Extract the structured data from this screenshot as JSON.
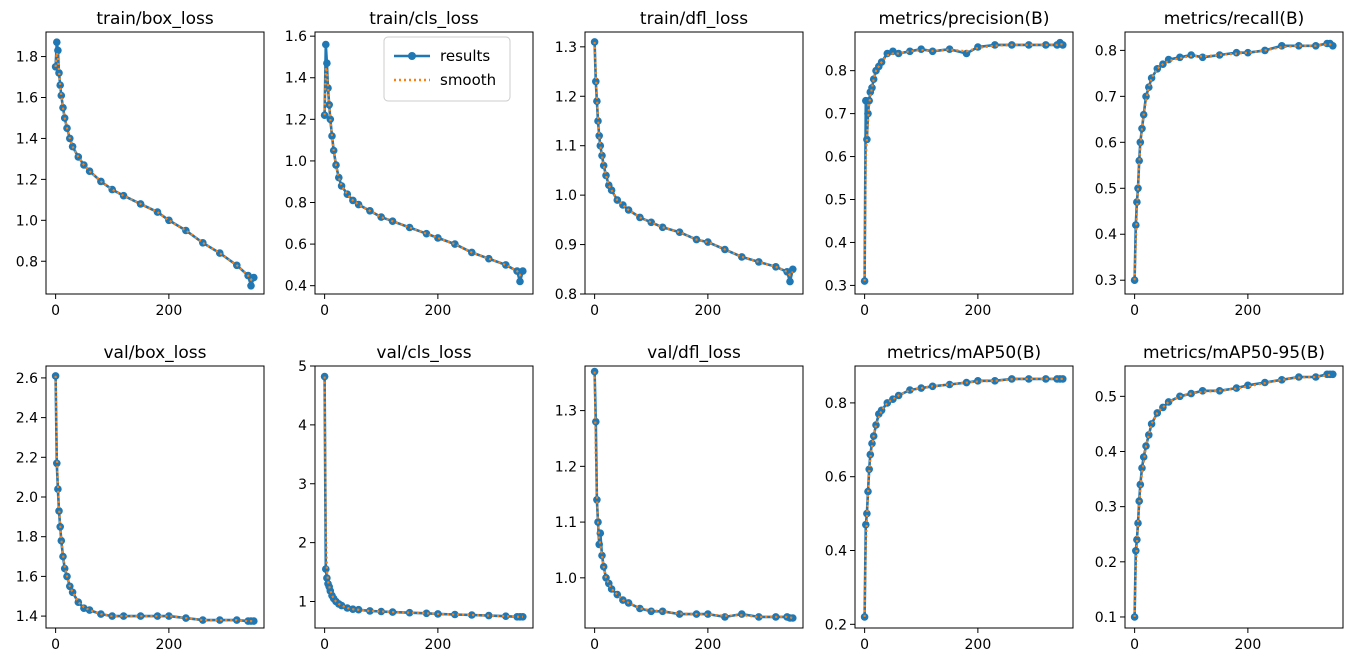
{
  "figure": {
    "background": "#ffffff"
  },
  "legend": {
    "panel": 1,
    "placement": "upper-right",
    "entries": [
      {
        "label": "results",
        "style": "line-marker",
        "color": "#1f77b4"
      },
      {
        "label": "smooth",
        "style": "dotted",
        "color": "#ff7f0e"
      }
    ]
  },
  "chart_data": [
    {
      "type": "line",
      "title": "train/box_loss",
      "x": [
        0,
        2,
        4,
        6,
        8,
        10,
        13,
        16,
        20,
        25,
        30,
        40,
        50,
        60,
        80,
        100,
        120,
        150,
        180,
        200,
        230,
        260,
        290,
        320,
        340,
        345,
        350
      ],
      "series": [
        {
          "name": "results",
          "values": [
            1.75,
            1.87,
            1.83,
            1.72,
            1.66,
            1.61,
            1.55,
            1.5,
            1.45,
            1.4,
            1.36,
            1.31,
            1.27,
            1.24,
            1.19,
            1.15,
            1.12,
            1.08,
            1.04,
            1.0,
            0.95,
            0.89,
            0.84,
            0.78,
            0.73,
            0.68,
            0.72
          ]
        },
        {
          "name": "smooth",
          "values": [
            1.75,
            1.82,
            1.8,
            1.73,
            1.66,
            1.61,
            1.55,
            1.5,
            1.45,
            1.4,
            1.36,
            1.31,
            1.27,
            1.24,
            1.19,
            1.15,
            1.12,
            1.08,
            1.04,
            1.0,
            0.95,
            0.89,
            0.84,
            0.78,
            0.73,
            0.71,
            0.72
          ]
        }
      ],
      "xlim": [
        -17,
        368
      ],
      "ylim": [
        0.64,
        1.92
      ],
      "xticks": [
        0,
        200
      ],
      "yticks": [
        0.8,
        1.0,
        1.2,
        1.4,
        1.6,
        1.8
      ],
      "yticklabels": [
        "0.8",
        "1.0",
        "1.2",
        "1.4",
        "1.6",
        "1.8"
      ]
    },
    {
      "type": "line",
      "title": "train/cls_loss",
      "x": [
        0,
        2,
        4,
        6,
        8,
        10,
        13,
        16,
        20,
        25,
        30,
        40,
        50,
        60,
        80,
        100,
        120,
        150,
        180,
        200,
        230,
        260,
        290,
        320,
        340,
        345,
        350
      ],
      "series": [
        {
          "name": "results",
          "values": [
            1.22,
            1.56,
            1.47,
            1.35,
            1.27,
            1.2,
            1.12,
            1.05,
            0.98,
            0.92,
            0.88,
            0.84,
            0.81,
            0.79,
            0.76,
            0.73,
            0.71,
            0.68,
            0.65,
            0.63,
            0.6,
            0.56,
            0.53,
            0.5,
            0.47,
            0.42,
            0.47
          ]
        },
        {
          "name": "smooth",
          "values": [
            1.22,
            1.45,
            1.43,
            1.36,
            1.28,
            1.2,
            1.12,
            1.05,
            0.98,
            0.92,
            0.88,
            0.84,
            0.81,
            0.79,
            0.76,
            0.73,
            0.71,
            0.68,
            0.65,
            0.63,
            0.6,
            0.56,
            0.53,
            0.5,
            0.47,
            0.45,
            0.46
          ]
        }
      ],
      "xlim": [
        -17,
        368
      ],
      "ylim": [
        0.36,
        1.62
      ],
      "xticks": [
        0,
        200
      ],
      "yticks": [
        0.4,
        0.6,
        0.8,
        1.0,
        1.2,
        1.4,
        1.6
      ],
      "yticklabels": [
        "0.4",
        "0.6",
        "0.8",
        "1.0",
        "1.2",
        "1.4",
        "1.6"
      ]
    },
    {
      "type": "line",
      "title": "train/dfl_loss",
      "x": [
        0,
        2,
        4,
        6,
        8,
        10,
        13,
        16,
        20,
        25,
        30,
        40,
        50,
        60,
        80,
        100,
        120,
        150,
        180,
        200,
        230,
        260,
        290,
        320,
        340,
        345,
        350
      ],
      "series": [
        {
          "name": "results",
          "values": [
            1.31,
            1.23,
            1.19,
            1.15,
            1.12,
            1.1,
            1.08,
            1.06,
            1.04,
            1.02,
            1.01,
            0.99,
            0.98,
            0.97,
            0.955,
            0.945,
            0.935,
            0.925,
            0.91,
            0.905,
            0.89,
            0.875,
            0.865,
            0.855,
            0.845,
            0.825,
            0.85
          ]
        },
        {
          "name": "smooth",
          "values": [
            1.31,
            1.25,
            1.2,
            1.16,
            1.12,
            1.1,
            1.08,
            1.06,
            1.04,
            1.02,
            1.01,
            0.99,
            0.98,
            0.97,
            0.955,
            0.945,
            0.935,
            0.925,
            0.91,
            0.905,
            0.89,
            0.875,
            0.865,
            0.855,
            0.845,
            0.838,
            0.845
          ]
        }
      ],
      "xlim": [
        -17,
        368
      ],
      "ylim": [
        0.8,
        1.33
      ],
      "xticks": [
        0,
        200
      ],
      "yticks": [
        0.8,
        0.9,
        1.0,
        1.1,
        1.2,
        1.3
      ],
      "yticklabels": [
        "0.8",
        "0.9",
        "1.0",
        "1.1",
        "1.2",
        "1.3"
      ]
    },
    {
      "type": "line",
      "title": "metrics/precision(B)",
      "x": [
        0,
        2,
        4,
        6,
        8,
        10,
        13,
        16,
        20,
        25,
        30,
        40,
        50,
        60,
        80,
        100,
        120,
        150,
        180,
        200,
        230,
        260,
        290,
        320,
        340,
        345,
        350
      ],
      "series": [
        {
          "name": "results",
          "values": [
            0.31,
            0.73,
            0.64,
            0.7,
            0.73,
            0.75,
            0.76,
            0.78,
            0.8,
            0.81,
            0.82,
            0.84,
            0.845,
            0.84,
            0.845,
            0.85,
            0.845,
            0.85,
            0.84,
            0.855,
            0.86,
            0.86,
            0.86,
            0.86,
            0.86,
            0.865,
            0.86
          ]
        },
        {
          "name": "smooth",
          "values": [
            0.31,
            0.6,
            0.64,
            0.68,
            0.72,
            0.74,
            0.76,
            0.78,
            0.8,
            0.81,
            0.82,
            0.835,
            0.84,
            0.84,
            0.845,
            0.848,
            0.846,
            0.849,
            0.845,
            0.853,
            0.858,
            0.86,
            0.86,
            0.86,
            0.86,
            0.862,
            0.861
          ]
        }
      ],
      "xlim": [
        -17,
        368
      ],
      "ylim": [
        0.28,
        0.89
      ],
      "xticks": [
        0,
        200
      ],
      "yticks": [
        0.3,
        0.4,
        0.5,
        0.6,
        0.7,
        0.8
      ],
      "yticklabels": [
        "0.3",
        "0.4",
        "0.5",
        "0.6",
        "0.7",
        "0.8"
      ]
    },
    {
      "type": "line",
      "title": "metrics/recall(B)",
      "x": [
        0,
        2,
        4,
        6,
        8,
        10,
        13,
        16,
        20,
        25,
        30,
        40,
        50,
        60,
        80,
        100,
        120,
        150,
        180,
        200,
        230,
        260,
        290,
        320,
        340,
        345,
        350
      ],
      "series": [
        {
          "name": "results",
          "values": [
            0.3,
            0.42,
            0.47,
            0.5,
            0.56,
            0.6,
            0.63,
            0.66,
            0.7,
            0.72,
            0.74,
            0.76,
            0.77,
            0.78,
            0.785,
            0.79,
            0.785,
            0.79,
            0.795,
            0.795,
            0.8,
            0.81,
            0.81,
            0.81,
            0.815,
            0.815,
            0.81
          ]
        },
        {
          "name": "smooth",
          "values": [
            0.3,
            0.38,
            0.45,
            0.5,
            0.55,
            0.59,
            0.63,
            0.66,
            0.69,
            0.72,
            0.74,
            0.76,
            0.77,
            0.777,
            0.783,
            0.788,
            0.787,
            0.79,
            0.793,
            0.795,
            0.8,
            0.807,
            0.81,
            0.81,
            0.813,
            0.813,
            0.812
          ]
        }
      ],
      "xlim": [
        -17,
        368
      ],
      "ylim": [
        0.27,
        0.84
      ],
      "xticks": [
        0,
        200
      ],
      "yticks": [
        0.3,
        0.4,
        0.5,
        0.6,
        0.7,
        0.8
      ],
      "yticklabels": [
        "0.3",
        "0.4",
        "0.5",
        "0.6",
        "0.7",
        "0.8"
      ]
    },
    {
      "type": "line",
      "title": "val/box_loss",
      "x": [
        0,
        2,
        4,
        6,
        8,
        10,
        13,
        16,
        20,
        25,
        30,
        40,
        50,
        60,
        80,
        100,
        120,
        150,
        180,
        200,
        230,
        260,
        290,
        320,
        340,
        345,
        350
      ],
      "series": [
        {
          "name": "results",
          "values": [
            2.61,
            2.17,
            2.04,
            1.93,
            1.85,
            1.78,
            1.7,
            1.64,
            1.6,
            1.55,
            1.52,
            1.47,
            1.44,
            1.43,
            1.41,
            1.4,
            1.4,
            1.4,
            1.4,
            1.4,
            1.39,
            1.38,
            1.38,
            1.38,
            1.375,
            1.375,
            1.375
          ]
        },
        {
          "name": "smooth",
          "values": [
            2.61,
            2.23,
            2.06,
            1.95,
            1.86,
            1.79,
            1.71,
            1.65,
            1.6,
            1.55,
            1.52,
            1.47,
            1.445,
            1.43,
            1.41,
            1.4,
            1.4,
            1.4,
            1.4,
            1.4,
            1.39,
            1.38,
            1.38,
            1.38,
            1.375,
            1.375,
            1.375
          ]
        }
      ],
      "xlim": [
        -17,
        368
      ],
      "ylim": [
        1.34,
        2.66
      ],
      "xticks": [
        0,
        200
      ],
      "yticks": [
        1.4,
        1.6,
        1.8,
        2.0,
        2.2,
        2.4,
        2.6
      ],
      "yticklabels": [
        "1.4",
        "1.6",
        "1.8",
        "2.0",
        "2.2",
        "2.4",
        "2.6"
      ]
    },
    {
      "type": "line",
      "title": "val/cls_loss",
      "x": [
        0,
        2,
        4,
        6,
        8,
        10,
        13,
        16,
        20,
        25,
        30,
        40,
        50,
        60,
        80,
        100,
        120,
        150,
        180,
        200,
        230,
        260,
        290,
        320,
        340,
        345,
        350
      ],
      "series": [
        {
          "name": "results",
          "values": [
            4.82,
            1.55,
            1.4,
            1.3,
            1.25,
            1.18,
            1.1,
            1.05,
            1.0,
            0.96,
            0.93,
            0.89,
            0.87,
            0.86,
            0.84,
            0.83,
            0.82,
            0.81,
            0.8,
            0.79,
            0.78,
            0.77,
            0.76,
            0.75,
            0.74,
            0.74,
            0.74
          ]
        },
        {
          "name": "smooth",
          "values": [
            4.82,
            2.25,
            1.55,
            1.35,
            1.26,
            1.19,
            1.11,
            1.05,
            1.0,
            0.96,
            0.93,
            0.89,
            0.87,
            0.86,
            0.84,
            0.83,
            0.82,
            0.81,
            0.8,
            0.79,
            0.78,
            0.77,
            0.76,
            0.75,
            0.74,
            0.74,
            0.74
          ]
        }
      ],
      "xlim": [
        -17,
        368
      ],
      "ylim": [
        0.55,
        5.0
      ],
      "xticks": [
        0,
        200
      ],
      "yticks": [
        1,
        2,
        3,
        4,
        5
      ],
      "yticklabels": [
        "1",
        "2",
        "3",
        "4",
        "5"
      ]
    },
    {
      "type": "line",
      "title": "val/dfl_loss",
      "x": [
        0,
        2,
        4,
        6,
        8,
        10,
        13,
        16,
        20,
        25,
        30,
        40,
        50,
        60,
        80,
        100,
        120,
        150,
        180,
        200,
        230,
        260,
        290,
        320,
        340,
        345,
        350
      ],
      "series": [
        {
          "name": "results",
          "values": [
            1.37,
            1.28,
            1.14,
            1.1,
            1.06,
            1.08,
            1.04,
            1.02,
            1.0,
            0.99,
            0.98,
            0.97,
            0.96,
            0.955,
            0.945,
            0.94,
            0.94,
            0.935,
            0.935,
            0.935,
            0.93,
            0.935,
            0.93,
            0.93,
            0.93,
            0.928,
            0.928
          ]
        },
        {
          "name": "smooth",
          "values": [
            1.37,
            1.22,
            1.15,
            1.1,
            1.07,
            1.06,
            1.04,
            1.02,
            1.0,
            0.99,
            0.98,
            0.97,
            0.96,
            0.955,
            0.945,
            0.942,
            0.94,
            0.936,
            0.935,
            0.934,
            0.932,
            0.933,
            0.93,
            0.93,
            0.93,
            0.929,
            0.928
          ]
        }
      ],
      "xlim": [
        -17,
        368
      ],
      "ylim": [
        0.91,
        1.38
      ],
      "xticks": [
        0,
        200
      ],
      "yticks": [
        1.0,
        1.1,
        1.2,
        1.3
      ],
      "yticklabels": [
        "1.0",
        "1.1",
        "1.2",
        "1.3"
      ]
    },
    {
      "type": "line",
      "title": "metrics/mAP50(B)",
      "x": [
        0,
        2,
        4,
        6,
        8,
        10,
        13,
        16,
        20,
        25,
        30,
        40,
        50,
        60,
        80,
        100,
        120,
        150,
        180,
        200,
        230,
        260,
        290,
        320,
        340,
        345,
        350
      ],
      "series": [
        {
          "name": "results",
          "values": [
            0.22,
            0.47,
            0.5,
            0.56,
            0.62,
            0.66,
            0.69,
            0.71,
            0.74,
            0.77,
            0.78,
            0.8,
            0.81,
            0.82,
            0.835,
            0.84,
            0.845,
            0.85,
            0.855,
            0.86,
            0.86,
            0.865,
            0.865,
            0.865,
            0.865,
            0.865,
            0.865
          ]
        },
        {
          "name": "smooth",
          "values": [
            0.22,
            0.42,
            0.48,
            0.55,
            0.61,
            0.65,
            0.68,
            0.71,
            0.74,
            0.76,
            0.78,
            0.8,
            0.81,
            0.82,
            0.834,
            0.84,
            0.845,
            0.85,
            0.855,
            0.858,
            0.86,
            0.864,
            0.865,
            0.865,
            0.865,
            0.865,
            0.865
          ]
        }
      ],
      "xlim": [
        -17,
        368
      ],
      "ylim": [
        0.19,
        0.9
      ],
      "xticks": [
        0,
        200
      ],
      "yticks": [
        0.2,
        0.4,
        0.6,
        0.8
      ],
      "yticklabels": [
        "0.2",
        "0.4",
        "0.6",
        "0.8"
      ]
    },
    {
      "type": "line",
      "title": "metrics/mAP50-95(B)",
      "x": [
        0,
        2,
        4,
        6,
        8,
        10,
        13,
        16,
        20,
        25,
        30,
        40,
        50,
        60,
        80,
        100,
        120,
        150,
        180,
        200,
        230,
        260,
        290,
        320,
        340,
        345,
        350
      ],
      "series": [
        {
          "name": "results",
          "values": [
            0.1,
            0.22,
            0.24,
            0.27,
            0.31,
            0.34,
            0.37,
            0.39,
            0.41,
            0.43,
            0.45,
            0.47,
            0.48,
            0.49,
            0.5,
            0.505,
            0.51,
            0.51,
            0.515,
            0.52,
            0.525,
            0.53,
            0.535,
            0.535,
            0.54,
            0.54,
            0.54
          ]
        },
        {
          "name": "smooth",
          "values": [
            0.1,
            0.19,
            0.23,
            0.27,
            0.3,
            0.33,
            0.36,
            0.38,
            0.41,
            0.43,
            0.45,
            0.47,
            0.48,
            0.49,
            0.5,
            0.505,
            0.508,
            0.51,
            0.514,
            0.518,
            0.524,
            0.53,
            0.534,
            0.535,
            0.538,
            0.539,
            0.54
          ]
        }
      ],
      "xlim": [
        -17,
        368
      ],
      "ylim": [
        0.08,
        0.555
      ],
      "xticks": [
        0,
        200
      ],
      "yticks": [
        0.1,
        0.2,
        0.3,
        0.4,
        0.5
      ],
      "yticklabels": [
        "0.1",
        "0.2",
        "0.3",
        "0.4",
        "0.5"
      ]
    }
  ]
}
